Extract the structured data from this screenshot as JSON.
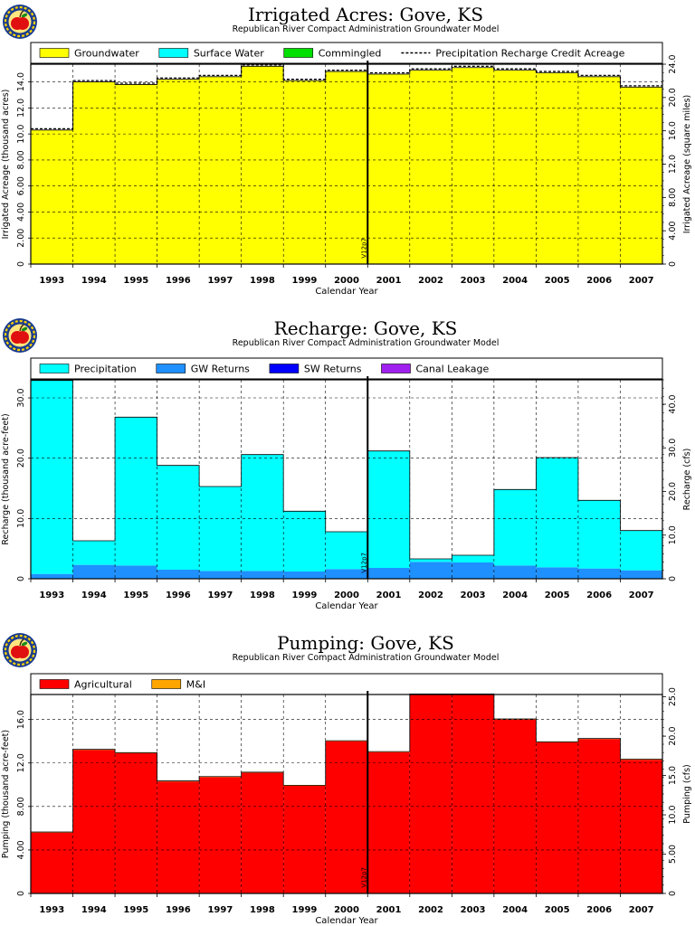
{
  "logo_icon": "apple-seal-icon",
  "chart_data": [
    {
      "id": "irrigated",
      "type": "area",
      "title": "Irrigated Acres: Gove, KS",
      "subtitle": "Republican River Compact Administration Groundwater Model",
      "xlabel": "Calendar Year",
      "ylabel": "Irrigated Acreage (thousand acres)",
      "ylabel_right": "Irrigated Acreage (square miles)",
      "categories": [
        "1993",
        "1994",
        "1995",
        "1996",
        "1997",
        "1998",
        "1999",
        "2000",
        "2001",
        "2002",
        "2003",
        "2004",
        "2005",
        "2006",
        "2007"
      ],
      "ylim": [
        0,
        15.36
      ],
      "yticks": [
        2.0,
        4.0,
        6.0,
        8.0,
        10.0,
        12.0,
        14.0
      ],
      "ytick_labels": [
        "2.00",
        "4.00",
        "6.00",
        "8.00",
        "10.0",
        "12.0",
        "14.0"
      ],
      "yticks_left_bare": [
        0
      ],
      "ylim_right": [
        0,
        24.0
      ],
      "yticks_right": [
        4.0,
        8.0,
        12.0,
        16.0,
        20.0,
        24.0
      ],
      "ytick_labels_right": [
        "4.00",
        "8.00",
        "12.0",
        "16.0",
        "20.0",
        "24.0"
      ],
      "yticks_right_bare": [
        0
      ],
      "grid": true,
      "legend_position": "top",
      "series": [
        {
          "name": "Groundwater",
          "color": "#ffff00",
          "values": [
            10.3,
            14.0,
            13.8,
            14.2,
            14.4,
            15.2,
            14.1,
            14.8,
            14.6,
            14.9,
            15.1,
            14.9,
            14.7,
            14.4,
            13.6
          ]
        },
        {
          "name": "Surface Water",
          "color": "#00ffff",
          "values": [
            0,
            0,
            0,
            0,
            0,
            0,
            0,
            0,
            0,
            0,
            0,
            0,
            0,
            0,
            0
          ]
        },
        {
          "name": "Commingled",
          "color": "#00e000",
          "values": [
            0,
            0,
            0,
            0,
            0,
            0,
            0,
            0,
            0,
            0,
            0,
            0,
            0,
            0,
            0
          ]
        }
      ],
      "line_series": {
        "name": "Precipitation Recharge Credit Acreage",
        "style": "dashed",
        "values": [
          10.4,
          14.1,
          13.9,
          14.3,
          14.5,
          15.3,
          14.2,
          14.9,
          14.7,
          15.0,
          15.2,
          15.0,
          14.8,
          14.5,
          13.7
        ]
      },
      "marker": {
        "label": "V12p7",
        "after_category": "2000"
      }
    },
    {
      "id": "recharge",
      "type": "area",
      "title": "Recharge: Gove, KS",
      "subtitle": "Republican River Compact Administration Groundwater Model",
      "xlabel": "Calendar Year",
      "ylabel": "Recharge (thousand acre-feet)",
      "ylabel_right": "Recharge (cfs)",
      "categories": [
        "1993",
        "1994",
        "1995",
        "1996",
        "1997",
        "1998",
        "1999",
        "2000",
        "2001",
        "2002",
        "2003",
        "2004",
        "2005",
        "2006",
        "2007"
      ],
      "ylim": [
        0,
        33.0
      ],
      "yticks": [
        10.0,
        20.0,
        30.0
      ],
      "ytick_labels": [
        "10.0",
        "20.0",
        "30.0"
      ],
      "yticks_left_bare": [
        0
      ],
      "ylim_right": [
        0,
        45.6
      ],
      "yticks_right": [
        10.0,
        20.0,
        30.0,
        40.0
      ],
      "ytick_labels_right": [
        "10.0",
        "20.0",
        "30.0",
        "40.0"
      ],
      "yticks_right_bare": [
        0
      ],
      "grid": true,
      "legend_position": "top",
      "series": [
        {
          "name": "GW Returns",
          "color": "#1e90ff",
          "values": [
            0.8,
            2.3,
            2.2,
            1.5,
            1.3,
            1.3,
            1.2,
            1.6,
            1.8,
            2.8,
            2.7,
            2.2,
            1.9,
            1.7,
            1.4
          ]
        },
        {
          "name": "Precipitation",
          "color": "#00ffff",
          "values": [
            32.1,
            4.0,
            24.6,
            17.3,
            14.0,
            19.3,
            10.0,
            6.2,
            19.4,
            0.5,
            1.2,
            12.6,
            18.2,
            11.3,
            6.6
          ]
        },
        {
          "name": "SW Returns",
          "color": "#0000ff",
          "values": [
            0,
            0,
            0,
            0,
            0,
            0,
            0,
            0,
            0,
            0,
            0,
            0,
            0,
            0,
            0
          ]
        },
        {
          "name": "Canal Leakage",
          "color": "#a020f0",
          "values": [
            0,
            0,
            0,
            0,
            0,
            0,
            0,
            0,
            0,
            0,
            0,
            0,
            0,
            0,
            0
          ]
        }
      ],
      "legend_order": [
        "Precipitation",
        "GW Returns",
        "SW Returns",
        "Canal Leakage"
      ],
      "marker": {
        "label": "V12p7",
        "after_category": "2000"
      }
    },
    {
      "id": "pumping",
      "type": "area",
      "title": "Pumping: Gove, KS",
      "subtitle": "Republican River Compact Administration Groundwater Model",
      "xlabel": "Calendar Year",
      "ylabel": "Pumping (thousand acre-feet)",
      "ylabel_right": "Pumping (cfs)",
      "categories": [
        "1993",
        "1994",
        "1995",
        "1996",
        "1997",
        "1998",
        "1999",
        "2000",
        "2001",
        "2002",
        "2003",
        "2004",
        "2005",
        "2006",
        "2007"
      ],
      "ylim": [
        0,
        18.3
      ],
      "yticks": [
        4.0,
        8.0,
        12.0,
        16.0
      ],
      "ytick_labels": [
        "4.00",
        "8.00",
        "12.0",
        "16.0"
      ],
      "yticks_left_bare": [
        0
      ],
      "ylim_right": [
        0,
        25.3
      ],
      "yticks_right": [
        5.0,
        10.0,
        15.0,
        20.0,
        25.0
      ],
      "ytick_labels_right": [
        "5.00",
        "10.0",
        "15.0",
        "20.0",
        "25.0"
      ],
      "yticks_right_bare": [
        0
      ],
      "grid": true,
      "legend_position": "top",
      "series": [
        {
          "name": "Agricultural",
          "color": "#ff0000",
          "values": [
            5.6,
            13.2,
            12.9,
            10.3,
            10.7,
            11.1,
            9.9,
            14.0,
            13.0,
            18.3,
            18.3,
            16.0,
            13.9,
            14.2,
            12.3
          ]
        },
        {
          "name": "M&I",
          "color": "#ffa500",
          "values": [
            0.05,
            0.05,
            0.05,
            0.05,
            0.05,
            0.05,
            0.05,
            0.05,
            0.05,
            0.05,
            0.05,
            0.05,
            0.05,
            0.05,
            0.05
          ]
        }
      ],
      "marker": {
        "label": "V12p7",
        "after_category": "2000"
      }
    }
  ]
}
